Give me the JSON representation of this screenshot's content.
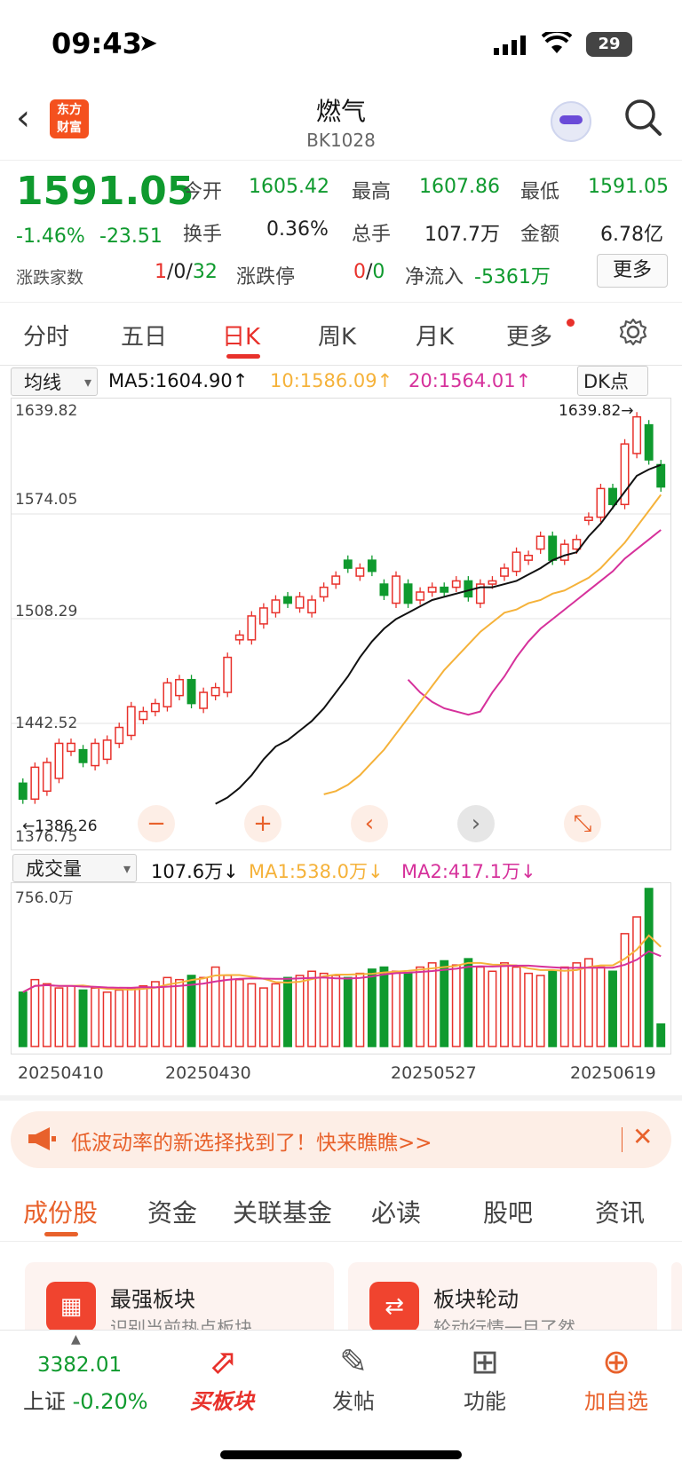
{
  "status_bar": {
    "time": "09:43",
    "battery": "29"
  },
  "header": {
    "logo_line1": "东方",
    "logo_line2": "财富",
    "title": "燃气",
    "code": "BK1028"
  },
  "quote": {
    "price": "1591.05",
    "change_pct": "-1.46%",
    "change": "-23.51",
    "open_label": "今开",
    "open": "1605.42",
    "high_label": "最高",
    "high": "1607.86",
    "low_label": "最低",
    "low": "1591.05",
    "turnover_label": "换手",
    "turnover": "0.36%",
    "volume_label": "总手",
    "volume": "107.7万",
    "amount_label": "金额",
    "amount": "6.78亿",
    "updown_label": "涨跌家数",
    "up": "1",
    "flat": "/0/",
    "down": "32",
    "limit_label": "涨跌停",
    "limit_up": "0",
    "limit_sep": "/",
    "limit_down": "0",
    "netflow_label": "净流入",
    "netflow": "-5361万",
    "more_button": "更多"
  },
  "chart_tabs": [
    "分时",
    "五日",
    "日K",
    "周K",
    "月K",
    "更多"
  ],
  "ma_row": {
    "selector": "均线",
    "ma5": "MA5:1604.90↑",
    "ma10": "10:1586.09↑",
    "ma20": "20:1564.01↑",
    "dk": "DK点"
  },
  "kline_axis": {
    "y1": "1639.82",
    "y2": "1574.05",
    "y3": "1508.29",
    "y4": "1442.52",
    "y5": "1376.75",
    "max_label": "1639.82→",
    "min_label": "←1386.26"
  },
  "controls": [
    "−",
    "+",
    "‹",
    "›",
    "⤡"
  ],
  "volume_row": {
    "selector": "成交量",
    "vol": "107.6万↓",
    "ma1": "MA1:538.0万↓",
    "ma2": "MA2:417.1万↓",
    "ymax": "756.0万"
  },
  "date_axis": [
    "20250410",
    "20250430",
    "20250527",
    "20250619"
  ],
  "chart_data": {
    "type": "candlestick",
    "ylim": [
      1376.75,
      1639.82
    ],
    "candles": [
      {
        "o": 1405,
        "c": 1395,
        "up": false
      },
      {
        "o": 1395,
        "c": 1415,
        "up": true
      },
      {
        "o": 1400,
        "c": 1418,
        "up": true
      },
      {
        "o": 1408,
        "c": 1430,
        "up": true
      },
      {
        "o": 1425,
        "c": 1430,
        "up": true
      },
      {
        "o": 1426,
        "c": 1418,
        "up": false
      },
      {
        "o": 1416,
        "c": 1430,
        "up": true
      },
      {
        "o": 1420,
        "c": 1432,
        "up": true
      },
      {
        "o": 1430,
        "c": 1440,
        "up": true
      },
      {
        "o": 1435,
        "c": 1453,
        "up": true
      },
      {
        "o": 1445,
        "c": 1450,
        "up": true
      },
      {
        "o": 1450,
        "c": 1455,
        "up": true
      },
      {
        "o": 1453,
        "c": 1468,
        "up": true
      },
      {
        "o": 1460,
        "c": 1470,
        "up": true
      },
      {
        "o": 1470,
        "c": 1455,
        "up": false
      },
      {
        "o": 1452,
        "c": 1462,
        "up": true
      },
      {
        "o": 1460,
        "c": 1465,
        "up": true
      },
      {
        "o": 1462,
        "c": 1484,
        "up": true
      },
      {
        "o": 1495,
        "c": 1498,
        "up": true
      },
      {
        "o": 1495,
        "c": 1510,
        "up": true
      },
      {
        "o": 1505,
        "c": 1515,
        "up": true
      },
      {
        "o": 1512,
        "c": 1520,
        "up": true
      },
      {
        "o": 1522,
        "c": 1518,
        "up": false
      },
      {
        "o": 1515,
        "c": 1522,
        "up": true
      },
      {
        "o": 1512,
        "c": 1520,
        "up": true
      },
      {
        "o": 1522,
        "c": 1528,
        "up": true
      },
      {
        "o": 1530,
        "c": 1535,
        "up": true
      },
      {
        "o": 1545,
        "c": 1540,
        "up": false
      },
      {
        "o": 1535,
        "c": 1540,
        "up": true
      },
      {
        "o": 1545,
        "c": 1538,
        "up": false
      },
      {
        "o": 1530,
        "c": 1523,
        "up": false
      },
      {
        "o": 1518,
        "c": 1535,
        "up": true
      },
      {
        "o": 1530,
        "c": 1518,
        "up": false
      },
      {
        "o": 1520,
        "c": 1525,
        "up": true
      },
      {
        "o": 1525,
        "c": 1528,
        "up": true
      },
      {
        "o": 1528,
        "c": 1525,
        "up": false
      },
      {
        "o": 1528,
        "c": 1532,
        "up": true
      },
      {
        "o": 1532,
        "c": 1522,
        "up": false
      },
      {
        "o": 1518,
        "c": 1530,
        "up": true
      },
      {
        "o": 1530,
        "c": 1532,
        "up": true
      },
      {
        "o": 1535,
        "c": 1540,
        "up": true
      },
      {
        "o": 1538,
        "c": 1550,
        "up": true
      },
      {
        "o": 1545,
        "c": 1548,
        "up": true
      },
      {
        "o": 1552,
        "c": 1560,
        "up": true
      },
      {
        "o": 1560,
        "c": 1545,
        "up": false
      },
      {
        "o": 1545,
        "c": 1555,
        "up": true
      },
      {
        "o": 1552,
        "c": 1558,
        "up": true
      },
      {
        "o": 1570,
        "c": 1572,
        "up": true
      },
      {
        "o": 1572,
        "c": 1590,
        "up": true
      },
      {
        "o": 1590,
        "c": 1580,
        "up": false
      },
      {
        "o": 1580,
        "c": 1618,
        "up": true
      },
      {
        "o": 1612,
        "c": 1635,
        "up": true
      },
      {
        "o": 1630,
        "c": 1608,
        "up": false
      },
      {
        "o": 1605,
        "c": 1591,
        "up": false
      }
    ],
    "ma5": [
      1392,
      1396,
      1402,
      1410,
      1420,
      1428,
      1432,
      1438,
      1444,
      1452,
      1462,
      1472,
      1484,
      1494,
      1502,
      1508,
      1512,
      1516,
      1520,
      1522,
      1524,
      1526,
      1528,
      1528,
      1530,
      1532,
      1536,
      1540,
      1545,
      1548,
      1550,
      1560,
      1568,
      1578,
      1588,
      1598,
      1602,
      1604.9
    ],
    "ma10": [
      1398,
      1400,
      1404,
      1410,
      1418,
      1426,
      1436,
      1446,
      1456,
      1466,
      1476,
      1484,
      1492,
      1500,
      1506,
      1512,
      1514,
      1518,
      1520,
      1524,
      1526,
      1530,
      1534,
      1540,
      1548,
      1556,
      1566,
      1576,
      1586.09
    ],
    "ma20": [
      1470,
      1462,
      1456,
      1452,
      1450,
      1448,
      1450,
      1462,
      1472,
      1484,
      1494,
      1502,
      1508,
      1514,
      1520,
      1526,
      1532,
      1538,
      1546,
      1552,
      1558,
      1564.01
    ],
    "volume": [
      260,
      320,
      300,
      280,
      290,
      270,
      280,
      260,
      270,
      280,
      290,
      310,
      330,
      320,
      340,
      330,
      380,
      340,
      320,
      300,
      280,
      300,
      330,
      340,
      360,
      350,
      340,
      330,
      350,
      370,
      380,
      360,
      350,
      380,
      400,
      410,
      390,
      420,
      380,
      360,
      400,
      380,
      350,
      340,
      360,
      380,
      400,
      420,
      380,
      360,
      540,
      620,
      756,
      107.6
    ],
    "volume_ylim": [
      0,
      756.0
    ]
  },
  "banner": {
    "text": "低波动率的新选择找到了！快来瞧瞧>>"
  },
  "sub_tabs": [
    "成份股",
    "资金",
    "关联基金",
    "必读",
    "股吧",
    "资讯"
  ],
  "cards": [
    {
      "title": "最强板块",
      "subtitle": "识别当前热点板块"
    },
    {
      "title": "板块轮动",
      "subtitle": "轮动行情一目了然"
    }
  ],
  "bottom_bar": {
    "index_value": "3382.01",
    "index_name": "上证",
    "index_change": "-0.20%",
    "buy_label": "买板块",
    "post_label": "发帖",
    "func_label": "功能",
    "add_label": "加自选"
  },
  "colors": {
    "up": "#e8312b",
    "down": "#0f9a2e",
    "ma5": "#111111",
    "ma10": "#f5b23a",
    "ma20": "#d6319b",
    "accent": "#e8612b"
  }
}
